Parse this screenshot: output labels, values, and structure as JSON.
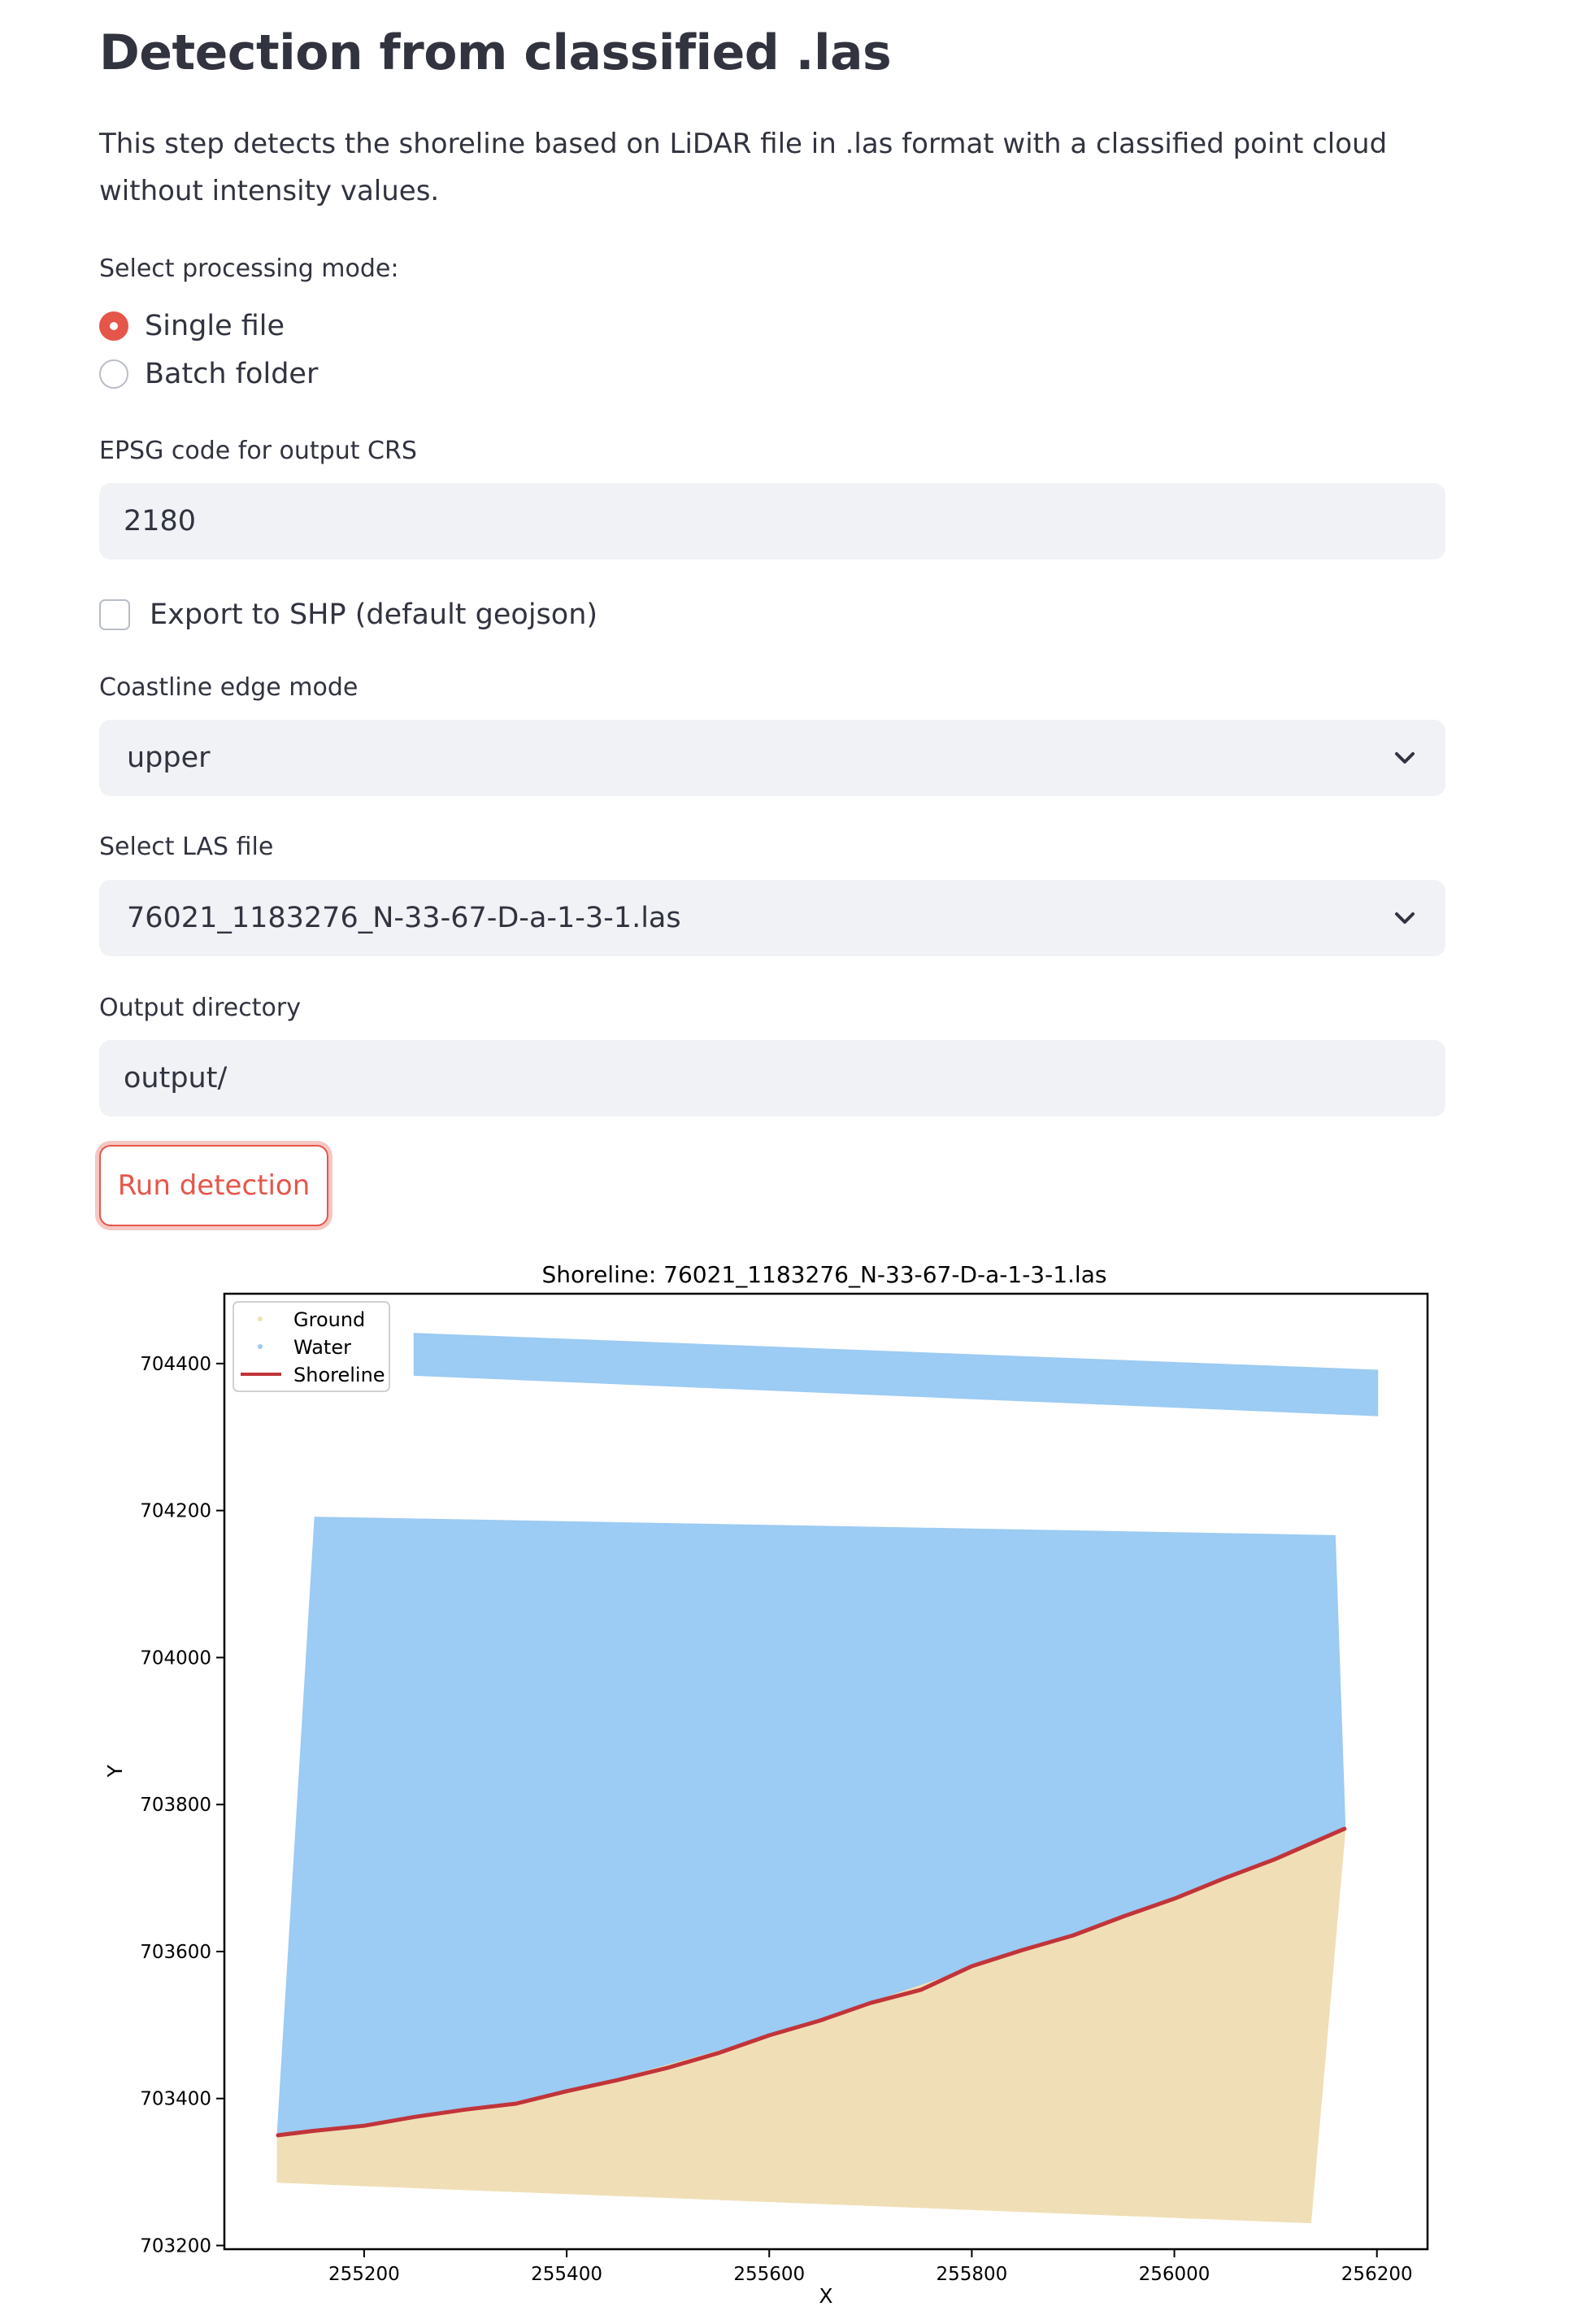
{
  "page": {
    "title": "Detection from classified .las",
    "description": "This step detects the shoreline based on LiDAR file in .las format with a classified point cloud without intensity values."
  },
  "processing_mode": {
    "label": "Select processing mode:",
    "options": [
      {
        "label": "Single file",
        "selected": true
      },
      {
        "label": "Batch folder",
        "selected": false
      }
    ]
  },
  "epsg": {
    "label": "EPSG code for output CRS",
    "value": "2180"
  },
  "export_shp": {
    "label": "Export to SHP (default geojson)",
    "checked": false
  },
  "coastline_edge": {
    "label": "Coastline edge mode",
    "value": "upper",
    "icon": "chevron-down-icon"
  },
  "las_file": {
    "label": "Select LAS file",
    "value": "76021_1183276_N-33-67-D-a-1-3-1.las",
    "icon": "chevron-down-icon"
  },
  "output_dir": {
    "label": "Output directory",
    "value": "output/"
  },
  "run_button": {
    "label": "Run detection"
  },
  "colors": {
    "accent": "#e5564a",
    "ground": "#f0dfb6",
    "water": "#9ccbf3",
    "shoreline": "#c1343a"
  },
  "chart_data": {
    "type": "scatter",
    "title": "Shoreline: 76021_1183276_N-33-67-D-a-1-3-1.las",
    "xlabel": "X",
    "ylabel": "Y",
    "xlim": [
      255062,
      256250
    ],
    "ylim": [
      703195,
      704495
    ],
    "xticks": [
      255200,
      255400,
      255600,
      255800,
      256000,
      256200
    ],
    "yticks": [
      703200,
      703400,
      703600,
      703800,
      704000,
      704200,
      704400
    ],
    "xtick_labels": [
      "255200",
      "255400",
      "255600",
      "255800",
      "256000",
      "256200"
    ],
    "ytick_labels": [
      "703200",
      "703400",
      "703600",
      "703800",
      "704000",
      "704200",
      "704400"
    ],
    "legend": {
      "location": "upper-left",
      "entries": [
        {
          "label": "Ground",
          "marker": "point",
          "color": "#f0dfb6"
        },
        {
          "label": "Water",
          "marker": "point",
          "color": "#9ccbf3"
        },
        {
          "label": "Shoreline",
          "marker": "line",
          "color": "#c1343a"
        }
      ]
    },
    "series": [
      {
        "name": "Ground",
        "kind": "filled_region",
        "color": "#f0dfb6",
        "x": [
          255115,
          255200,
          255400,
          255600,
          255800,
          256000,
          256168,
          256134,
          255115
        ],
        "y": [
          703350,
          703362,
          703410,
          703486,
          703580,
          703672,
          703767,
          703232,
          703287
        ]
      },
      {
        "name": "Water",
        "kind": "filled_region",
        "color": "#9ccbf3",
        "x": [
          255152,
          256158,
          256168,
          256000,
          255800,
          255600,
          255400,
          255200,
          255115
        ],
        "y": [
          704190,
          704165,
          703767,
          703672,
          703580,
          703486,
          703410,
          703362,
          703350
        ]
      },
      {
        "name": "Water",
        "kind": "filled_region",
        "color": "#9ccbf3",
        "x": [
          255250,
          256200,
          256200,
          255250
        ],
        "y": [
          704440,
          704390,
          704330,
          704385
        ]
      },
      {
        "name": "Shoreline",
        "kind": "line",
        "color": "#c1343a",
        "x": [
          255115,
          255150,
          255200,
          255250,
          255300,
          255350,
          255400,
          255450,
          255500,
          255550,
          255600,
          255650,
          255700,
          255750,
          255800,
          255850,
          255900,
          255950,
          256000,
          256050,
          256100,
          256168
        ],
        "y": [
          703350,
          703356,
          703363,
          703375,
          703385,
          703393,
          703410,
          703425,
          703442,
          703462,
          703486,
          703506,
          703530,
          703548,
          703580,
          703602,
          703622,
          703648,
          703672,
          703700,
          703726,
          703767
        ]
      }
    ]
  }
}
